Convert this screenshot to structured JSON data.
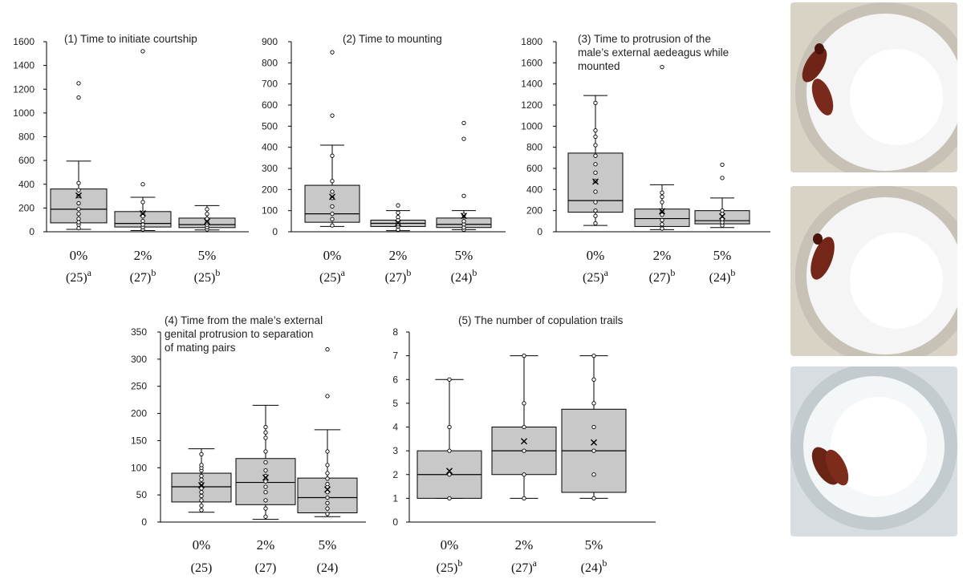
{
  "chart_data": [
    {
      "type": "box",
      "title": "(1) Time to initiate courtship",
      "xlabel": "",
      "ylabel": "",
      "ylim": [
        0,
        1600
      ],
      "yticks": [
        0,
        200,
        400,
        600,
        800,
        1000,
        1200,
        1400,
        1600
      ],
      "categories": [
        "0%",
        "2%",
        "5%"
      ],
      "sample_labels": [
        {
          "n": "(25)",
          "sup": "a"
        },
        {
          "n": "(27)",
          "sup": "b"
        },
        {
          "n": "(25)",
          "sup": "b"
        }
      ],
      "boxes": [
        {
          "whisker_low": 20,
          "q1": 75,
          "median": 190,
          "q3": 360,
          "whisker_high": 595,
          "mean": 305
        },
        {
          "whisker_low": 10,
          "q1": 40,
          "median": 70,
          "q3": 170,
          "whisker_high": 290,
          "mean": 155
        },
        {
          "whisker_low": 15,
          "q1": 35,
          "median": 60,
          "q3": 115,
          "whisker_high": 220,
          "mean": 85
        }
      ],
      "points": [
        [
          30,
          60,
          80,
          110,
          150,
          190,
          240,
          300,
          350,
          410,
          1130,
          1250
        ],
        [
          20,
          40,
          60,
          90,
          130,
          160,
          250,
          400,
          1520
        ],
        [
          20,
          40,
          60,
          80,
          110,
          150,
          190
        ]
      ]
    },
    {
      "type": "box",
      "title": "(2) Time to mounting",
      "xlabel": "",
      "ylabel": "",
      "ylim": [
        0,
        900
      ],
      "yticks": [
        0,
        100,
        200,
        300,
        400,
        500,
        600,
        700,
        800,
        900
      ],
      "categories": [
        "0%",
        "2%",
        "5%"
      ],
      "sample_labels": [
        {
          "n": "(25)",
          "sup": "a"
        },
        {
          "n": "(27)",
          "sup": "b"
        },
        {
          "n": "(24)",
          "sup": "b"
        }
      ],
      "boxes": [
        {
          "whisker_low": 25,
          "q1": 45,
          "median": 85,
          "q3": 220,
          "whisker_high": 410,
          "mean": 165
        },
        {
          "whisker_low": 5,
          "q1": 25,
          "median": 40,
          "q3": 55,
          "whisker_high": 100,
          "mean": 42
        },
        {
          "whisker_low": 10,
          "q1": 20,
          "median": 35,
          "q3": 65,
          "whisker_high": 100,
          "mean": 75
        }
      ],
      "points": [
        [
          30,
          60,
          85,
          120,
          160,
          190,
          240,
          360,
          550,
          850
        ],
        [
          10,
          25,
          35,
          45,
          55,
          70,
          90,
          125
        ],
        [
          10,
          20,
          35,
          50,
          80,
          170,
          440,
          515
        ]
      ]
    },
    {
      "type": "box",
      "title": "(3) Time to protrusion of the male’s external aedeagus while mounted",
      "title_lines": [
        "(3) Time to protrusion of the",
        "male’s external aedeagus while",
        "mounted"
      ],
      "xlabel": "",
      "ylabel": "",
      "ylim": [
        0,
        1800
      ],
      "yticks": [
        0,
        200,
        400,
        600,
        800,
        1000,
        1200,
        1400,
        1600,
        1800
      ],
      "categories": [
        "0%",
        "2%",
        "5%"
      ],
      "sample_labels": [
        {
          "n": "(25)",
          "sup": "a"
        },
        {
          "n": "(27)",
          "sup": "b"
        },
        {
          "n": "(24)",
          "sup": "b"
        }
      ],
      "boxes": [
        {
          "whisker_low": 60,
          "q1": 185,
          "median": 295,
          "q3": 745,
          "whisker_high": 1290,
          "mean": 475
        },
        {
          "whisker_low": 20,
          "q1": 50,
          "median": 125,
          "q3": 215,
          "whisker_high": 445,
          "mean": 195
        },
        {
          "whisker_low": 40,
          "q1": 75,
          "median": 105,
          "q3": 200,
          "whisker_high": 320,
          "mean": 145
        }
      ],
      "points": [
        [
          80,
          150,
          200,
          280,
          380,
          480,
          560,
          640,
          720,
          820,
          900,
          960,
          1220
        ],
        [
          30,
          70,
          110,
          160,
          200,
          280,
          330,
          370,
          1560
        ],
        [
          60,
          90,
          120,
          170,
          200,
          510,
          635
        ]
      ]
    },
    {
      "type": "box",
      "title": "(4) Time from the male’s external genital protrusion to separation of mating pairs",
      "title_lines": [
        "(4) Time from the male’s external",
        "genital protrusion to separation",
        "of mating pairs"
      ],
      "xlabel": "",
      "ylabel": "",
      "ylim": [
        0,
        350
      ],
      "yticks": [
        0,
        50,
        100,
        150,
        200,
        250,
        300,
        350
      ],
      "categories": [
        "0%",
        "2%",
        "5%"
      ],
      "sample_labels": [
        {
          "n": "(25)",
          "sup": ""
        },
        {
          "n": "(27)",
          "sup": ""
        },
        {
          "n": "(24)",
          "sup": ""
        }
      ],
      "boxes": [
        {
          "whisker_low": 18,
          "q1": 37,
          "median": 65,
          "q3": 90,
          "whisker_high": 135,
          "mean": 68
        },
        {
          "whisker_low": 5,
          "q1": 32,
          "median": 73,
          "q3": 117,
          "whisker_high": 215,
          "mean": 82
        },
        {
          "whisker_low": 10,
          "q1": 17,
          "median": 45,
          "q3": 81,
          "whisker_high": 170,
          "mean": 60
        }
      ],
      "points": [
        [
          22,
          30,
          40,
          48,
          55,
          62,
          70,
          78,
          85,
          95,
          100,
          105,
          125
        ],
        [
          10,
          25,
          40,
          55,
          65,
          75,
          85,
          95,
          110,
          130,
          155,
          165,
          175
        ],
        [
          15,
          25,
          35,
          45,
          55,
          65,
          70,
          80,
          90,
          105,
          130,
          232,
          318
        ]
      ]
    },
    {
      "type": "box",
      "title": "(5) The number of copulation trails",
      "xlabel": "",
      "ylabel": "",
      "ylim": [
        0,
        8
      ],
      "yticks": [
        0,
        1,
        2,
        3,
        4,
        5,
        6,
        7,
        8
      ],
      "categories": [
        "0%",
        "2%",
        "5%"
      ],
      "sample_labels": [
        {
          "n": "(25)",
          "sup": "b"
        },
        {
          "n": "(27)",
          "sup": "a"
        },
        {
          "n": "(24)",
          "sup": "b"
        }
      ],
      "boxes": [
        {
          "whisker_low": 1,
          "q1": 1,
          "median": 2,
          "q3": 3,
          "whisker_high": 6,
          "mean": 2.15
        },
        {
          "whisker_low": 1,
          "q1": 2,
          "median": 3,
          "q3": 4,
          "whisker_high": 7,
          "mean": 3.4
        },
        {
          "whisker_low": 1,
          "q1": 1.25,
          "median": 3,
          "q3": 4.75,
          "whisker_high": 7,
          "mean": 3.35
        }
      ],
      "points": [
        [
          1,
          2,
          3,
          4,
          6
        ],
        [
          1,
          2,
          3,
          4,
          5,
          7
        ],
        [
          1,
          2,
          3,
          4,
          5,
          6,
          7
        ]
      ]
    }
  ],
  "style": {
    "box_fill": "#c8c8c8",
    "line_color": "#000000",
    "point_fill": "#ffffff"
  },
  "photos": [
    {
      "name": "beetles-photo-1"
    },
    {
      "name": "beetles-photo-2"
    },
    {
      "name": "beetles-photo-3"
    }
  ]
}
